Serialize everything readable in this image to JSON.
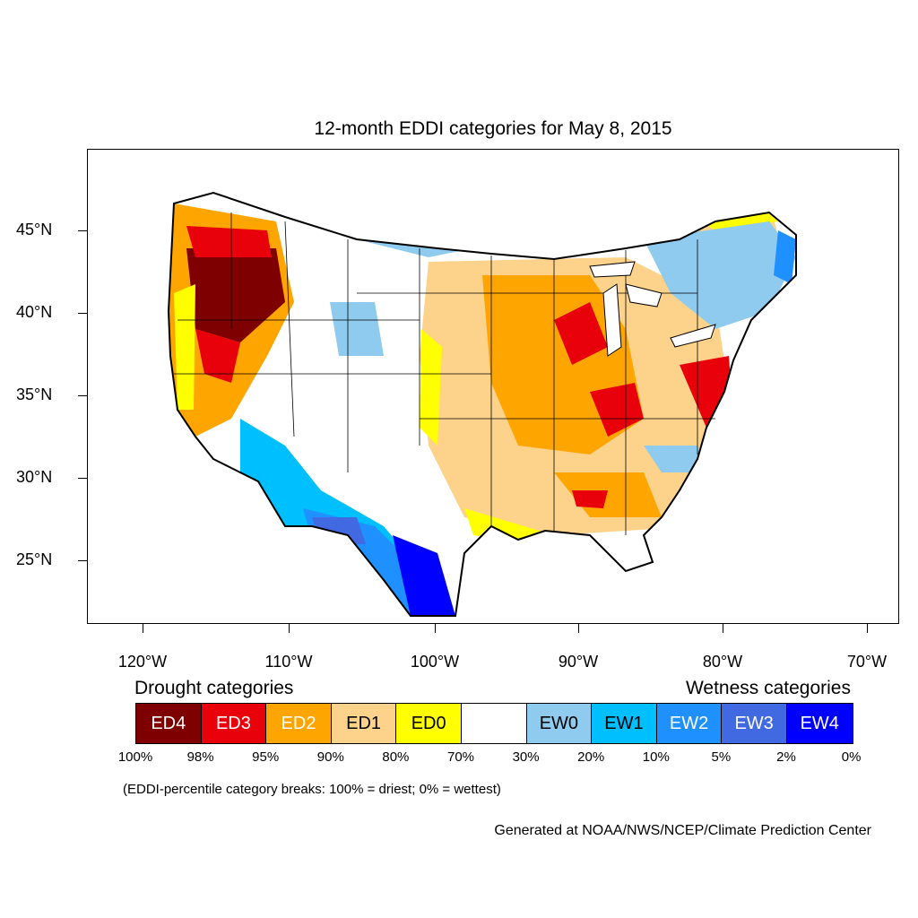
{
  "title": "12-month EDDI categories for May 8, 2015",
  "lat_labels": [
    "45°N",
    "40°N",
    "35°N",
    "30°N",
    "25°N"
  ],
  "lon_labels": [
    "120°W",
    "110°W",
    "100°W",
    "90°W",
    "80°W",
    "70°W"
  ],
  "legend": {
    "drought_heading": "Drought categories",
    "wetness_heading": "Wetness categories",
    "categories": [
      {
        "label": "ED4",
        "color": "#7f0000",
        "text_color": "#ffffff"
      },
      {
        "label": "ED3",
        "color": "#e8000b",
        "text_color": "#ffffff"
      },
      {
        "label": "ED2",
        "color": "#ffa500",
        "text_color": "#ffffff"
      },
      {
        "label": "ED1",
        "color": "#fdd28a",
        "text_color": "#000000"
      },
      {
        "label": "ED0",
        "color": "#ffff00",
        "text_color": "#000000"
      },
      {
        "label": "",
        "color": "#ffffff",
        "text_color": "#000000"
      },
      {
        "label": "EW0",
        "color": "#8ecbef",
        "text_color": "#000000"
      },
      {
        "label": "EW1",
        "color": "#00bfff",
        "text_color": "#000000"
      },
      {
        "label": "EW2",
        "color": "#1e90ff",
        "text_color": "#ffffff"
      },
      {
        "label": "EW3",
        "color": "#4169e1",
        "text_color": "#ffffff"
      },
      {
        "label": "EW4",
        "color": "#0000ff",
        "text_color": "#ffffff"
      }
    ],
    "breaks": [
      "100%",
      "98%",
      "95%",
      "90%",
      "80%",
      "70%",
      "30%",
      "20%",
      "10%",
      "5%",
      "2%",
      "0%"
    ]
  },
  "note": "(EDDI-percentile category breaks: 100% = driest; 0% = wettest)",
  "credit": "Generated at NOAA/NWS/NCEP/Climate Prediction Center"
}
